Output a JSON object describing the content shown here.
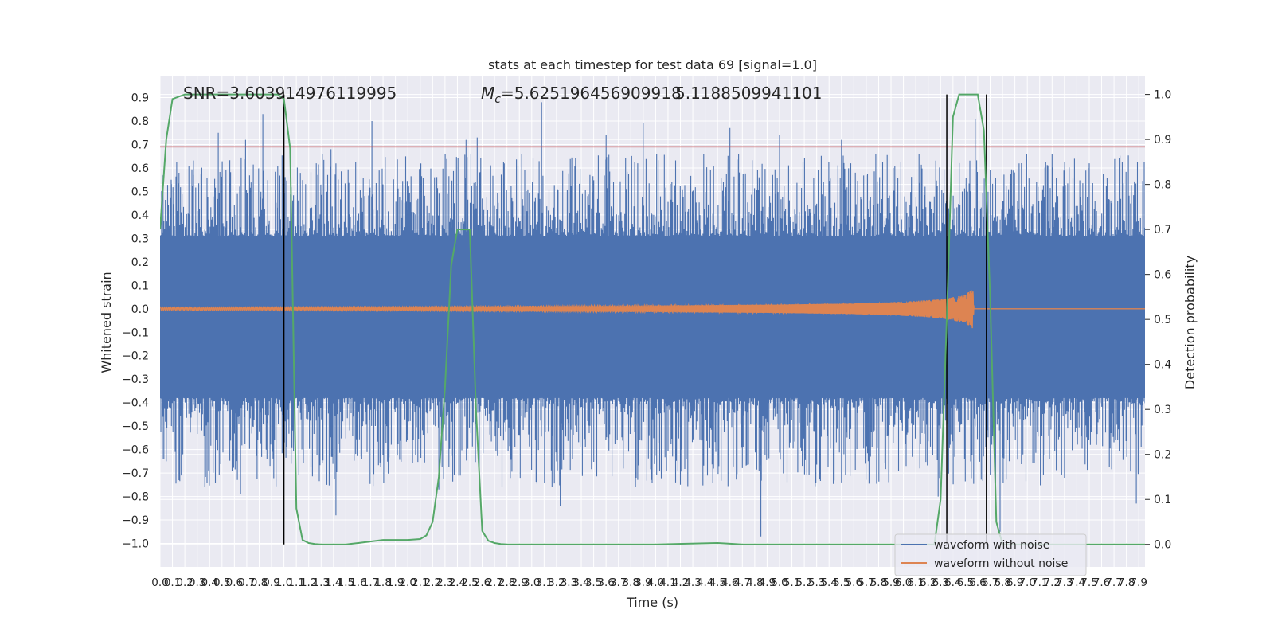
{
  "chart_data": {
    "type": "line",
    "title": "stats at each timestep for test data 69 [signal=1.0]",
    "xlabel": "Time (s)",
    "ylabel": "Whitened strain",
    "ylabel_right": "Detection probability",
    "xlim": [
      0.0,
      7.95
    ],
    "ylim": [
      -1.1,
      0.99
    ],
    "ylim_right": [
      -0.05,
      1.04
    ],
    "grid": true,
    "legend_position": "lower-right",
    "annotations": {
      "snr": "SNR=3.603914976119995",
      "mc_prefix": "M",
      "mc_sub": "c",
      "mc_value": "=5.625196456909918",
      "overlap": "5.1188509941101"
    },
    "x_ticks": [
      "0.0",
      "0.1",
      "0.2",
      "0.3",
      "0.4",
      "0.5",
      "0.6",
      "0.7",
      "0.8",
      "0.9",
      "1.0",
      "1.1",
      "1.2",
      "1.3",
      "1.4",
      "1.5",
      "1.6",
      "1.7",
      "1.8",
      "1.9",
      "2.0",
      "2.1",
      "2.2",
      "2.3",
      "2.4",
      "2.5",
      "2.6",
      "2.7",
      "2.8",
      "2.9",
      "3.0",
      "3.1",
      "3.2",
      "3.3",
      "3.4",
      "3.5",
      "3.6",
      "3.7",
      "3.8",
      "3.9",
      "4.0",
      "4.1",
      "4.2",
      "4.3",
      "4.4",
      "4.5",
      "4.6",
      "4.7",
      "4.8",
      "4.9",
      "5.0",
      "5.1",
      "5.2",
      "5.3",
      "5.4",
      "5.5",
      "5.6",
      "5.7",
      "5.8",
      "5.9",
      "6.0",
      "6.1",
      "6.2",
      "6.3",
      "6.4",
      "6.5",
      "6.6",
      "6.7",
      "6.8",
      "6.9",
      "7.0",
      "7.1",
      "7.2",
      "7.3",
      "7.4",
      "7.5",
      "7.6",
      "7.7",
      "7.8",
      "7.9"
    ],
    "y_ticks": [
      "0.9",
      "0.8",
      "0.7",
      "0.6",
      "0.5",
      "0.4",
      "0.3",
      "0.2",
      "0.1",
      "0.0",
      "−0.1",
      "−0.2",
      "−0.3",
      "−0.4",
      "−0.5",
      "−0.6",
      "−0.7",
      "−0.8",
      "−0.9",
      "−1.0"
    ],
    "y_right_ticks": [
      "1.0",
      "0.9",
      "0.8",
      "0.7",
      "0.6",
      "0.5",
      "0.4",
      "0.3",
      "0.2",
      "0.1",
      "0.0"
    ],
    "threshold": 0.69,
    "vlines": [
      1.0,
      6.35,
      6.67
    ],
    "colors": {
      "noisy": "#4c72b0",
      "clean": "#dd8452",
      "probability": "#55a868",
      "threshold": "#c44e52",
      "vline": "#000000",
      "background": "#eaeaf2",
      "grid": "#ffffff"
    },
    "noisy_series": {
      "name": "waveform with noise",
      "envelope_body": 0.31,
      "peaks": [
        {
          "t": 0.09,
          "v": 0.55
        },
        {
          "t": 0.27,
          "v": 0.57
        },
        {
          "t": 0.47,
          "v": 0.75
        },
        {
          "t": 0.69,
          "v": 0.72
        },
        {
          "t": 0.83,
          "v": 0.83
        },
        {
          "t": 0.95,
          "v": 0.61
        },
        {
          "t": 1.0,
          "v": 0.7
        },
        {
          "t": 1.38,
          "v": 0.68
        },
        {
          "t": 1.71,
          "v": 0.8
        },
        {
          "t": 2.1,
          "v": 0.62
        },
        {
          "t": 2.47,
          "v": 0.72
        },
        {
          "t": 2.56,
          "v": 0.73
        },
        {
          "t": 3.08,
          "v": 0.88
        },
        {
          "t": 3.6,
          "v": 0.74
        },
        {
          "t": 3.9,
          "v": 0.79
        },
        {
          "t": 4.6,
          "v": 0.77
        },
        {
          "t": 5.0,
          "v": 0.74
        },
        {
          "t": 5.5,
          "v": 0.72
        },
        {
          "t": 6.35,
          "v": 0.7
        },
        {
          "t": 6.58,
          "v": 0.81
        },
        {
          "t": 7.2,
          "v": 0.66
        },
        {
          "t": 7.5,
          "v": 0.62
        }
      ],
      "troughs": [
        {
          "t": 0.05,
          "v": -0.65
        },
        {
          "t": 0.65,
          "v": -0.79
        },
        {
          "t": 1.42,
          "v": -0.88
        },
        {
          "t": 2.25,
          "v": -0.77
        },
        {
          "t": 3.23,
          "v": -0.84
        },
        {
          "t": 4.2,
          "v": -0.75
        },
        {
          "t": 4.85,
          "v": -0.97
        },
        {
          "t": 5.5,
          "v": -0.74
        },
        {
          "t": 6.28,
          "v": -0.8
        },
        {
          "t": 6.78,
          "v": -0.95
        },
        {
          "t": 7.3,
          "v": -0.72
        },
        {
          "t": 7.88,
          "v": -0.83
        }
      ]
    },
    "clean_series": {
      "name": "waveform without noise",
      "points": [
        {
          "t": 0.0,
          "amp": 0.007
        },
        {
          "t": 1.0,
          "amp": 0.008
        },
        {
          "t": 2.0,
          "amp": 0.009
        },
        {
          "t": 3.0,
          "amp": 0.011
        },
        {
          "t": 4.0,
          "amp": 0.014
        },
        {
          "t": 5.0,
          "amp": 0.018
        },
        {
          "t": 5.6,
          "amp": 0.023
        },
        {
          "t": 6.0,
          "amp": 0.03
        },
        {
          "t": 6.3,
          "amp": 0.04
        },
        {
          "t": 6.5,
          "amp": 0.06
        },
        {
          "t": 6.56,
          "amp": 0.085
        },
        {
          "t": 6.57,
          "amp": 0.0
        },
        {
          "t": 7.95,
          "amp": 0.0
        }
      ],
      "chirp_end": 6.57
    },
    "probability_series": {
      "name": "Detection probability",
      "x": [
        0.0,
        0.05,
        0.1,
        0.2,
        0.3,
        0.5,
        0.7,
        0.9,
        0.95,
        1.0,
        1.05,
        1.1,
        1.15,
        1.2,
        1.25,
        1.3,
        1.4,
        1.5,
        1.6,
        1.8,
        1.9,
        2.0,
        2.1,
        2.15,
        2.2,
        2.25,
        2.3,
        2.35,
        2.4,
        2.45,
        2.5,
        2.55,
        2.6,
        2.65,
        2.7,
        2.75,
        2.8,
        3.0,
        4.0,
        4.5,
        4.7,
        5.0,
        6.0,
        6.25,
        6.3,
        6.35,
        6.4,
        6.45,
        6.5,
        6.55,
        6.6,
        6.65,
        6.7,
        6.75,
        6.8,
        6.85,
        6.9,
        7.0,
        7.95
      ],
      "values": [
        0.7,
        0.9,
        0.99,
        1.0,
        1.0,
        1.0,
        1.0,
        1.0,
        1.0,
        0.99,
        0.88,
        0.08,
        0.01,
        0.003,
        0.001,
        0.0,
        0.0,
        0.0,
        0.003,
        0.01,
        0.01,
        0.01,
        0.012,
        0.02,
        0.05,
        0.15,
        0.35,
        0.62,
        0.7,
        0.7,
        0.7,
        0.3,
        0.03,
        0.008,
        0.003,
        0.001,
        0.0,
        0.0,
        0.0,
        0.003,
        0.0,
        0.0,
        0.0,
        0.0,
        0.1,
        0.5,
        0.95,
        1.0,
        1.0,
        1.0,
        1.0,
        0.92,
        0.55,
        0.05,
        0.0,
        0.0,
        0.0,
        0.0,
        0.0
      ]
    },
    "threshold_series": {
      "name": "threshold",
      "value": 0.69
    }
  }
}
